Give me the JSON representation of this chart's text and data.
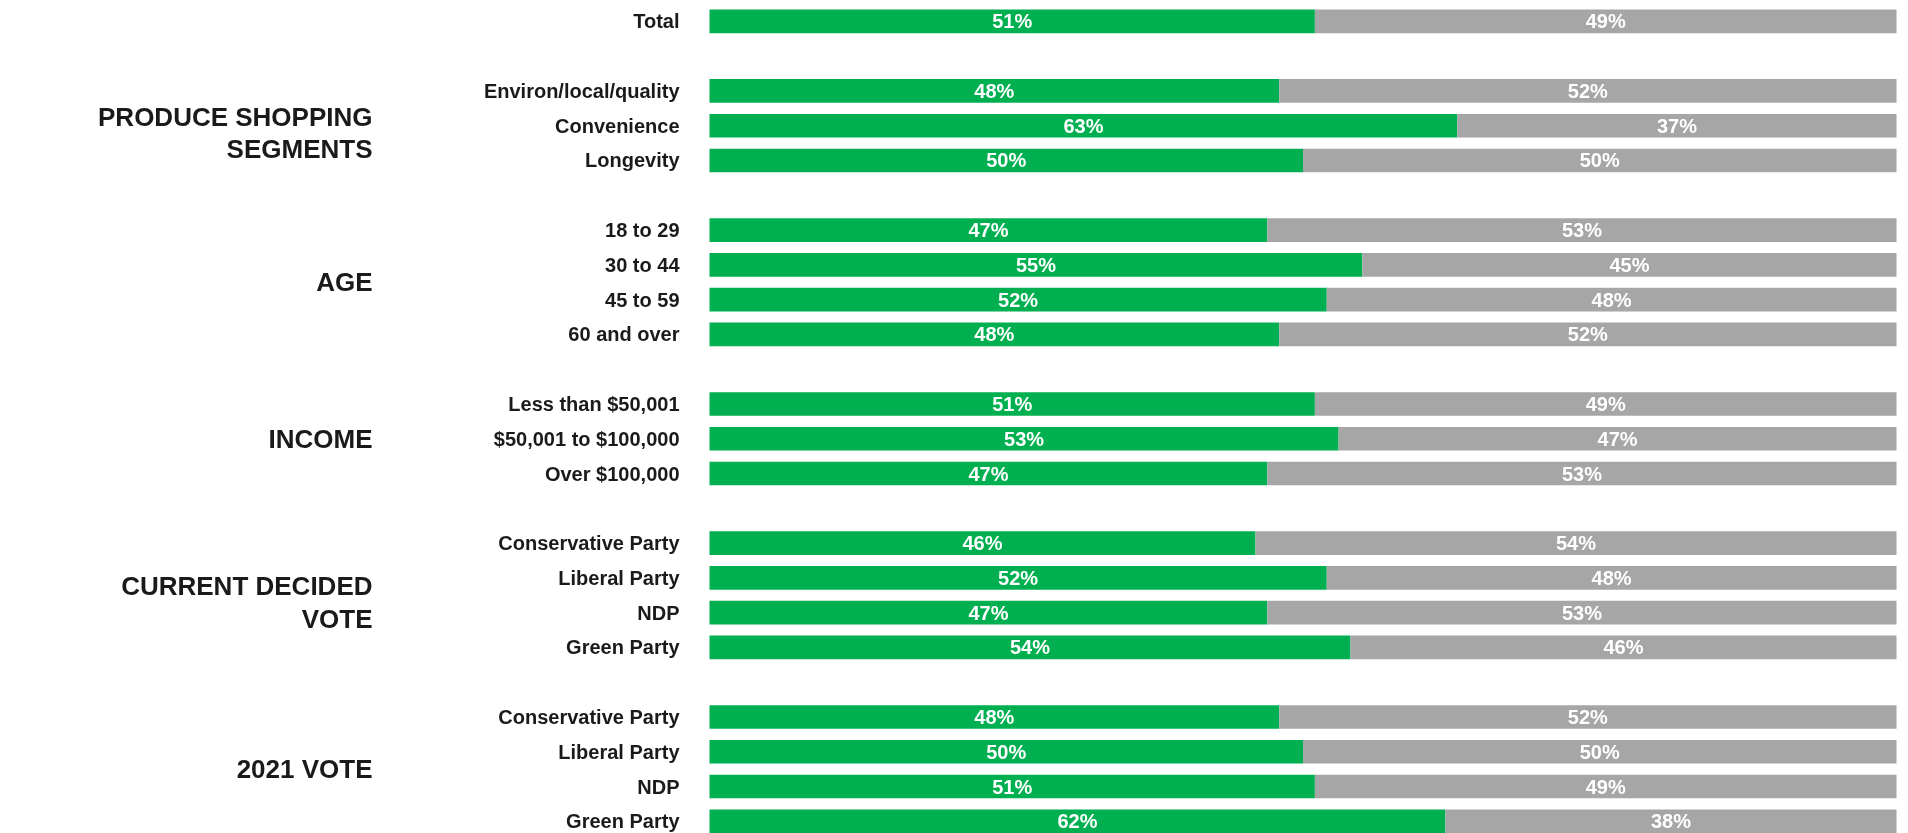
{
  "chart_data": {
    "type": "bar",
    "orientation": "horizontal",
    "stacked": true,
    "categories": [
      "Total",
      null,
      "Environ/local/quality",
      "Convenience",
      "Longevity",
      null,
      "18 to 29",
      "30 to 44",
      "45 to 59",
      "60 and over",
      null,
      "Less than $50,001",
      "$50,001 to $100,000",
      "Over $100,000",
      null,
      "Conservative Party",
      "Liberal Party",
      "NDP",
      "Green Party",
      null,
      "Conservative Party",
      "Liberal Party",
      "NDP",
      "Green Party"
    ],
    "series": [
      {
        "color": "#00b050",
        "values": [
          51,
          null,
          48,
          63,
          50,
          null,
          47,
          55,
          52,
          48,
          null,
          51,
          53,
          47,
          null,
          46,
          52,
          47,
          54,
          null,
          48,
          50,
          51,
          62
        ],
        "value_labels": [
          "51%",
          null,
          "48%",
          "63%",
          "50%",
          null,
          "47%",
          "55%",
          "52%",
          "48%",
          null,
          "51%",
          "53%",
          "47%",
          null,
          "46%",
          "52%",
          "47%",
          "54%",
          null,
          "48%",
          "50%",
          "51%",
          "62%"
        ]
      },
      {
        "color": "#a6a6a6",
        "values": [
          49,
          null,
          52,
          37,
          50,
          null,
          53,
          45,
          48,
          52,
          null,
          49,
          47,
          53,
          null,
          54,
          48,
          53,
          46,
          null,
          52,
          50,
          49,
          38
        ],
        "value_labels": [
          "49%",
          null,
          "52%",
          "37%",
          "50%",
          null,
          "53%",
          "45%",
          "48%",
          "52%",
          null,
          "49%",
          "47%",
          "53%",
          null,
          "54%",
          "48%",
          "53%",
          "46%",
          null,
          "52%",
          "50%",
          "49%",
          "38%"
        ]
      }
    ],
    "annotations": [
      "PRODUCE SHOPPING SEGMENTS",
      "AGE",
      "INCOME",
      "CURRENT DECIDED VOTE",
      "2021 VOTE"
    ]
  }
}
